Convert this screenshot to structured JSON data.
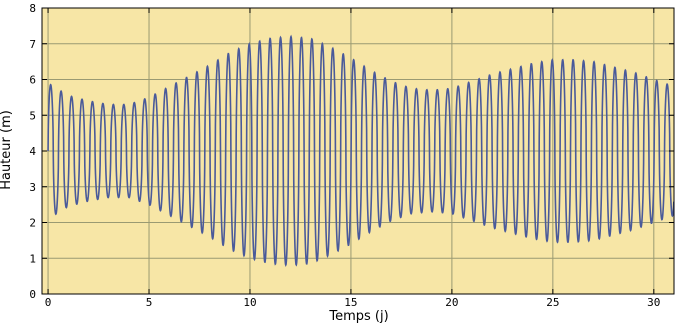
{
  "chart_data": {
    "type": "line",
    "xlabel": "Temps (j)",
    "ylabel": "Hauteur (m)",
    "xlim": [
      -0.3,
      31
    ],
    "ylim": [
      0,
      8
    ],
    "xticks": [
      0,
      5,
      10,
      15,
      20,
      25,
      30
    ],
    "yticks": [
      0,
      1,
      2,
      3,
      4,
      5,
      6,
      7,
      8
    ],
    "grid": true,
    "background_color": "#f7e6a6",
    "line_color": "#4a5a9a",
    "grid_color": "#9a9a72",
    "mean_level": 4.0,
    "sample_interval_days": 0.0104,
    "tidal_period_days": 0.5175,
    "envelope": {
      "description": "upper envelope of semi-diurnal oscillation (peak heights); lower envelope is symmetric around the mean level",
      "t": [
        0,
        1,
        2,
        3,
        4,
        5,
        6,
        7,
        8,
        9,
        10,
        11,
        12,
        13,
        14,
        15,
        16,
        17,
        18,
        19,
        20,
        21,
        22,
        23,
        24,
        25,
        26,
        27,
        28,
        29,
        30,
        31
      ],
      "high": [
        5.9,
        5.55,
        5.4,
        5.3,
        5.3,
        5.5,
        5.8,
        6.1,
        6.4,
        6.75,
        7.0,
        7.15,
        7.2,
        7.15,
        6.9,
        6.6,
        6.25,
        5.95,
        5.75,
        5.7,
        5.75,
        5.95,
        6.15,
        6.3,
        6.45,
        6.55,
        6.55,
        6.5,
        6.35,
        6.2,
        6.0,
        5.8
      ]
    }
  }
}
